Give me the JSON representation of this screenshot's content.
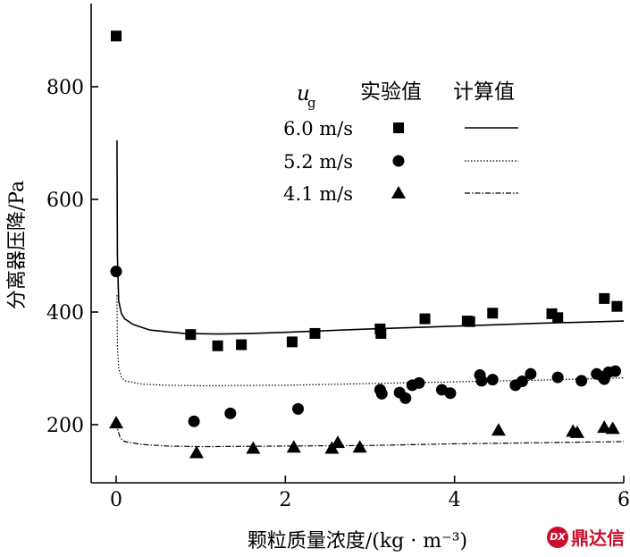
{
  "chart_data": {
    "type": "scatter",
    "xlabel": "颗粒质量浓度/(kg · m⁻³)",
    "ylabel": "分离器压降/Pa",
    "xlim": [
      0,
      6
    ],
    "ylim": [
      100,
      920
    ],
    "xticks": [
      0,
      2,
      4,
      6
    ],
    "yticks": [
      200,
      400,
      600,
      800
    ],
    "legend": {
      "placement": "top-right",
      "header": {
        "var": "u",
        "sub": "g",
        "exp": "实验值",
        "calc": "计算值"
      }
    },
    "series": [
      {
        "name": "6.0 m/s",
        "marker": "square",
        "line_style": "solid",
        "points": [
          [
            0,
            890
          ],
          [
            0.88,
            360
          ],
          [
            1.2,
            340
          ],
          [
            1.48,
            342
          ],
          [
            2.08,
            347
          ],
          [
            2.35,
            362
          ],
          [
            3.12,
            370
          ],
          [
            3.13,
            362
          ],
          [
            3.65,
            388
          ],
          [
            4.15,
            384
          ],
          [
            4.18,
            383
          ],
          [
            4.45,
            398
          ],
          [
            5.15,
            397
          ],
          [
            5.22,
            390
          ],
          [
            5.77,
            424
          ],
          [
            5.92,
            410
          ]
        ],
        "curve": [
          [
            0.01,
            705
          ],
          [
            0.015,
            500
          ],
          [
            0.03,
            420
          ],
          [
            0.06,
            398
          ],
          [
            0.1,
            388
          ],
          [
            0.2,
            378
          ],
          [
            0.4,
            368
          ],
          [
            0.8,
            362
          ],
          [
            1.2,
            361
          ],
          [
            1.6,
            362
          ],
          [
            2.0,
            364
          ],
          [
            3.0,
            370
          ],
          [
            4.0,
            375
          ],
          [
            5.0,
            380
          ],
          [
            6.0,
            384
          ]
        ]
      },
      {
        "name": "5.2 m/s",
        "marker": "circle",
        "line_style": "dotted",
        "points": [
          [
            0,
            472
          ],
          [
            0.92,
            206
          ],
          [
            1.35,
            220
          ],
          [
            2.15,
            228
          ],
          [
            3.12,
            262
          ],
          [
            3.14,
            255
          ],
          [
            3.35,
            257
          ],
          [
            3.42,
            247
          ],
          [
            3.5,
            270
          ],
          [
            3.58,
            274
          ],
          [
            3.85,
            262
          ],
          [
            3.95,
            256
          ],
          [
            4.3,
            288
          ],
          [
            4.32,
            278
          ],
          [
            4.45,
            280
          ],
          [
            4.72,
            270
          ],
          [
            4.8,
            277
          ],
          [
            4.9,
            290
          ],
          [
            5.22,
            284
          ],
          [
            5.5,
            278
          ],
          [
            5.68,
            290
          ],
          [
            5.75,
            285
          ],
          [
            5.77,
            281
          ],
          [
            5.82,
            293
          ],
          [
            5.9,
            295
          ]
        ],
        "curve": [
          [
            0.01,
            430
          ],
          [
            0.015,
            340
          ],
          [
            0.03,
            300
          ],
          [
            0.06,
            285
          ],
          [
            0.1,
            278
          ],
          [
            0.3,
            272
          ],
          [
            0.6,
            270
          ],
          [
            1.0,
            269
          ],
          [
            2.0,
            270
          ],
          [
            3.0,
            273
          ],
          [
            4.0,
            276
          ],
          [
            5.0,
            279
          ],
          [
            6.0,
            283
          ]
        ]
      },
      {
        "name": "4.1 m/s",
        "marker": "triangle",
        "line_style": "dashdot",
        "points": [
          [
            0,
            203
          ],
          [
            0.95,
            150
          ],
          [
            1.62,
            158
          ],
          [
            2.1,
            160
          ],
          [
            2.55,
            158
          ],
          [
            2.62,
            168
          ],
          [
            2.88,
            160
          ],
          [
            4.52,
            190
          ],
          [
            5.4,
            188
          ],
          [
            5.45,
            186
          ],
          [
            5.77,
            195
          ],
          [
            5.87,
            193
          ]
        ],
        "curve": [
          [
            0.01,
            205
          ],
          [
            0.02,
            190
          ],
          [
            0.05,
            176
          ],
          [
            0.1,
            170
          ],
          [
            0.3,
            165
          ],
          [
            0.6,
            162
          ],
          [
            1.0,
            161
          ],
          [
            2.0,
            162
          ],
          [
            3.0,
            163
          ],
          [
            4.0,
            166
          ],
          [
            5.0,
            168
          ],
          [
            6.0,
            170
          ]
        ]
      }
    ]
  },
  "watermark": {
    "logo_text": "DX",
    "text": "鼎达信"
  }
}
